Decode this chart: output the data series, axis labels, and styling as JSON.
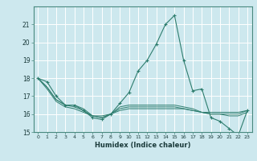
{
  "title": "",
  "xlabel": "Humidex (Indice chaleur)",
  "ylabel": "",
  "bg_color": "#cde8ee",
  "grid_color": "#ffffff",
  "line_color": "#2e7d6e",
  "x": [
    0,
    1,
    2,
    3,
    4,
    5,
    6,
    7,
    8,
    9,
    10,
    11,
    12,
    13,
    14,
    15,
    16,
    17,
    18,
    19,
    20,
    21,
    22,
    23
  ],
  "y_main": [
    18.0,
    17.8,
    17.0,
    16.5,
    16.5,
    16.2,
    15.8,
    15.7,
    16.0,
    16.6,
    17.2,
    18.4,
    19.0,
    19.9,
    21.0,
    21.5,
    19.0,
    17.3,
    17.4,
    15.8,
    15.6,
    15.2,
    14.8,
    16.2
  ],
  "y_line2": [
    18.0,
    17.5,
    16.8,
    16.5,
    16.5,
    16.3,
    15.9,
    15.8,
    16.0,
    16.4,
    16.5,
    16.5,
    16.5,
    16.5,
    16.5,
    16.5,
    16.4,
    16.3,
    16.1,
    16.0,
    16.0,
    15.9,
    15.9,
    16.1
  ],
  "y_line3": [
    18.0,
    17.5,
    16.8,
    16.5,
    16.4,
    16.2,
    15.9,
    15.8,
    16.0,
    16.3,
    16.4,
    16.4,
    16.4,
    16.4,
    16.4,
    16.4,
    16.3,
    16.2,
    16.1,
    16.0,
    16.0,
    16.0,
    16.0,
    16.2
  ],
  "y_line4": [
    18.0,
    17.4,
    16.7,
    16.4,
    16.3,
    16.1,
    15.9,
    15.9,
    16.0,
    16.2,
    16.3,
    16.3,
    16.3,
    16.3,
    16.3,
    16.3,
    16.3,
    16.2,
    16.1,
    16.1,
    16.1,
    16.1,
    16.1,
    16.2
  ],
  "ylim": [
    15,
    22
  ],
  "xlim": [
    -0.5,
    23.5
  ],
  "yticks": [
    15,
    16,
    17,
    18,
    19,
    20,
    21
  ],
  "xticks": [
    0,
    1,
    2,
    3,
    4,
    5,
    6,
    7,
    8,
    9,
    10,
    11,
    12,
    13,
    14,
    15,
    16,
    17,
    18,
    19,
    20,
    21,
    22,
    23
  ]
}
